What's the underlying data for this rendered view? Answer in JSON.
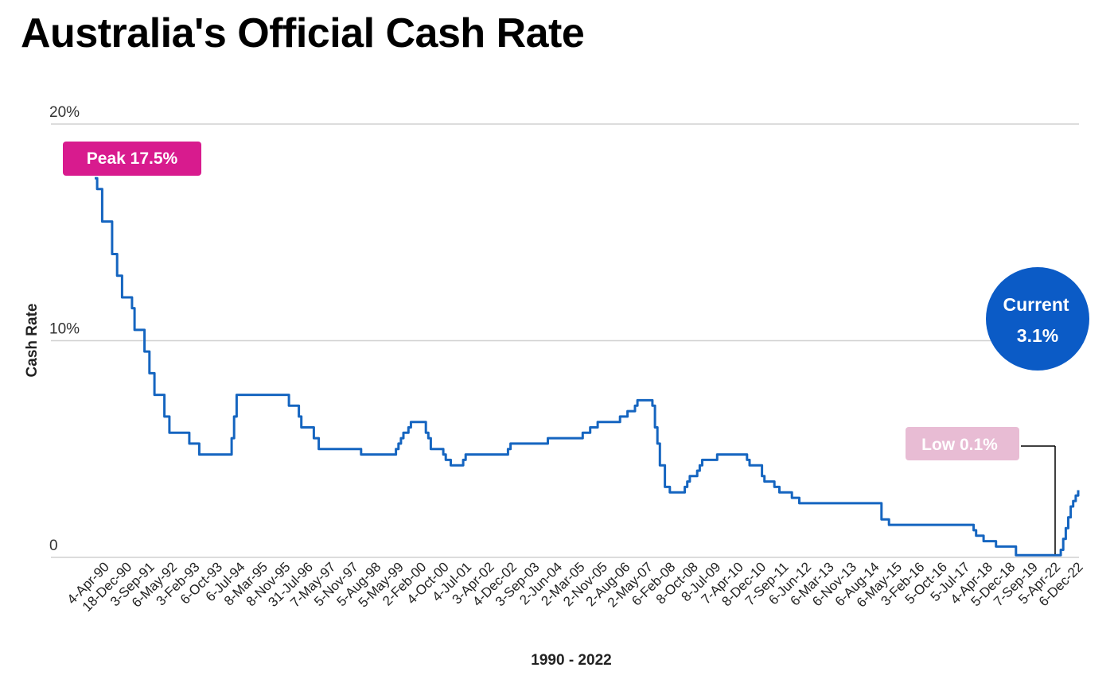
{
  "title": "Australia's Official Cash Rate",
  "chart_data": {
    "type": "line",
    "title": "Australia's Official Cash Rate",
    "xlabel": "1990 - 2022",
    "ylabel": "Cash Rate",
    "ylim": [
      0,
      20
    ],
    "y_ticks": [
      "0",
      "10%",
      "20%"
    ],
    "y_tick_values": [
      0,
      10,
      20
    ],
    "grid": true,
    "x_tick_labels": [
      "4-Apr-90",
      "18-Dec-90",
      "3-Sep-91",
      "6-May-92",
      "3-Feb-93",
      "6-Oct-93",
      "6-Jul-94",
      "8-Mar-95",
      "8-Nov-95",
      "31-Jul-96",
      "7-May-97",
      "5-Nov-97",
      "5-Aug-98",
      "5-May-99",
      "2-Feb-00",
      "4-Oct-00",
      "4-Jul-01",
      "3-Apr-02",
      "4-Dec-02",
      "3-Sep-03",
      "2-Jun-04",
      "2-Mar-05",
      "2-Nov-05",
      "2-Aug-06",
      "2-May-07",
      "6-Feb-08",
      "8-Oct-08",
      "8-Jul-09",
      "7-Apr-10",
      "8-Dec-10",
      "7-Sep-11",
      "6-Jun-12",
      "6-Mar-13",
      "6-Nov-13",
      "6-Aug-14",
      "6-May-15",
      "3-Feb-16",
      "5-Oct-16",
      "5-Jul-17",
      "4-Apr-18",
      "5-Dec-18",
      "7-Sep-19",
      "5-Apr-22",
      "6-Dec-22"
    ],
    "series": [
      {
        "color": "#1565c0",
        "x": [
          "1990-01",
          "1990-02",
          "1990-04",
          "1990-08",
          "1990-10",
          "1990-12",
          "1991-04",
          "1991-05",
          "1991-09",
          "1991-11",
          "1992-01",
          "1992-05",
          "1992-07",
          "1993-03",
          "1993-07",
          "1994-08",
          "1994-09",
          "1994-10",
          "1994-12",
          "1996-07",
          "1996-11",
          "1996-12",
          "1997-05",
          "1997-07",
          "1997-12",
          "1998-12",
          "2000-02",
          "2000-03",
          "2000-04",
          "2000-05",
          "2000-07",
          "2000-08",
          "2001-02",
          "2001-03",
          "2001-04",
          "2001-09",
          "2001-10",
          "2001-11",
          "2001-12",
          "2002-05",
          "2002-06",
          "2003-11",
          "2003-12",
          "2005-03",
          "2006-05",
          "2006-08",
          "2006-11",
          "2007-08",
          "2007-11",
          "2008-02",
          "2008-03",
          "2008-09",
          "2008-10",
          "2008-11",
          "2008-12",
          "2009-02",
          "2009-04",
          "2009-10",
          "2009-11",
          "2009-12",
          "2010-03",
          "2010-04",
          "2010-05",
          "2010-11",
          "2011-11",
          "2011-12",
          "2012-05",
          "2012-06",
          "2012-10",
          "2012-12",
          "2013-05",
          "2013-08",
          "2016-05",
          "2016-08",
          "2019-06",
          "2019-07",
          "2019-10",
          "2020-03",
          "2020-11",
          "2022-05",
          "2022-06",
          "2022-07",
          "2022-08",
          "2022-09",
          "2022-10",
          "2022-11",
          "2022-12"
        ],
        "values": [
          17.5,
          17.0,
          15.5,
          14.0,
          13.0,
          12.0,
          11.5,
          10.5,
          9.5,
          8.5,
          7.5,
          6.5,
          5.75,
          5.25,
          4.75,
          5.5,
          6.5,
          7.5,
          7.5,
          7.0,
          6.5,
          6.0,
          5.5,
          5.0,
          5.0,
          4.75,
          5.0,
          5.25,
          5.5,
          5.75,
          6.0,
          6.25,
          5.75,
          5.5,
          5.0,
          4.75,
          4.5,
          4.5,
          4.25,
          4.5,
          4.75,
          5.0,
          5.25,
          5.5,
          5.75,
          6.0,
          6.25,
          6.5,
          6.75,
          7.0,
          7.25,
          7.0,
          6.0,
          5.25,
          4.25,
          3.25,
          3.0,
          3.25,
          3.5,
          3.75,
          4.0,
          4.25,
          4.5,
          4.75,
          4.5,
          4.25,
          3.75,
          3.5,
          3.25,
          3.0,
          2.75,
          2.5,
          1.75,
          1.5,
          1.25,
          1.0,
          0.75,
          0.5,
          0.1,
          0.35,
          0.85,
          1.35,
          1.85,
          2.35,
          2.6,
          2.85,
          3.1
        ]
      }
    ],
    "annotations": [
      {
        "text": "Peak 17.5%",
        "color": "#d81b8e"
      },
      {
        "lines": [
          "Current",
          "3.1%"
        ],
        "color": "#0b5bc6"
      },
      {
        "text": "Low 0.1%",
        "color": "#e8bcd4"
      }
    ]
  }
}
